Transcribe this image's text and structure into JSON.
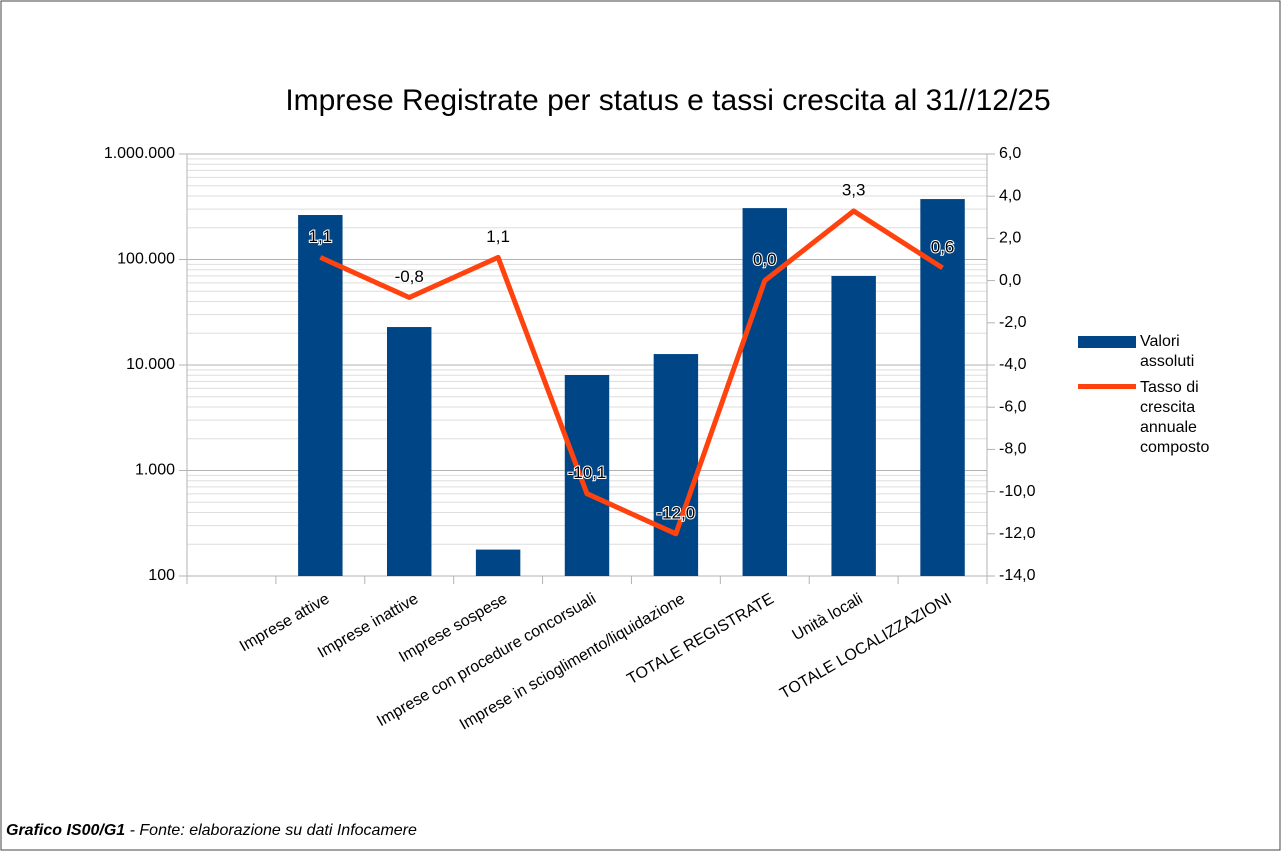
{
  "chart_data": {
    "type": "bar",
    "title": "Imprese Registrate per status e tassi crescita al 31//12/25",
    "categories": [
      null,
      "Imprese attive",
      "Imprese inattive",
      "Imprese sospese",
      "Imprese con procedure concorsuali",
      "Imprese in scioglimento/liquidazione",
      "TOTALE REGISTRATE",
      "Unità locali",
      "TOTALE LOCALIZZAZIONI"
    ],
    "series": [
      {
        "name": "Valori assoluti",
        "color": "#004586",
        "type": "bar",
        "values": [
          null,
          264000,
          22900,
          178,
          8040,
          12700,
          307000,
          69800,
          374000
        ]
      },
      {
        "name": "Tasso di crescita annuale composto",
        "color": "#ff420e",
        "type": "line",
        "axis": "y2",
        "values": [
          null,
          1.1,
          -0.8,
          1.1,
          -10.1,
          -12.0,
          0.0,
          3.3,
          0.6
        ],
        "value_labels": [
          null,
          "1,1",
          "-0,8",
          "1,1",
          "-10,1",
          "-12,0",
          "0,0",
          "3,3",
          "0,6"
        ]
      }
    ],
    "ylim": [
      100,
      1000000
    ],
    "ylog": true,
    "yticks": [
      100,
      {
        "value": 1000,
        "label": "1.000"
      },
      {
        "value": 10000,
        "label": "10.000"
      },
      {
        "value": 100000,
        "label": "100.000"
      },
      {
        "value": 1000000,
        "label": "1.000.000"
      }
    ],
    "y2lim": [
      -14,
      6
    ],
    "y2ticks": [
      {
        "value": -14,
        "label": "-14,0"
      },
      {
        "value": -12,
        "label": "-12,0"
      },
      {
        "value": -10,
        "label": "-10,0"
      },
      {
        "value": -8,
        "label": "-8,0"
      },
      {
        "value": -6,
        "label": "-6,0"
      },
      {
        "value": -4,
        "label": "-4,0"
      },
      {
        "value": -2,
        "label": "-2,0"
      },
      {
        "value": 0,
        "label": "0,0"
      },
      {
        "value": 2,
        "label": "2,0"
      },
      {
        "value": 4,
        "label": "4,0"
      },
      {
        "value": 6,
        "label": "6,0"
      }
    ],
    "grid": true,
    "legend": "right"
  },
  "caption": {
    "label": "Grafico IS00/G1",
    "text": "- Fonte: elaborazione su dati Infocamere"
  }
}
